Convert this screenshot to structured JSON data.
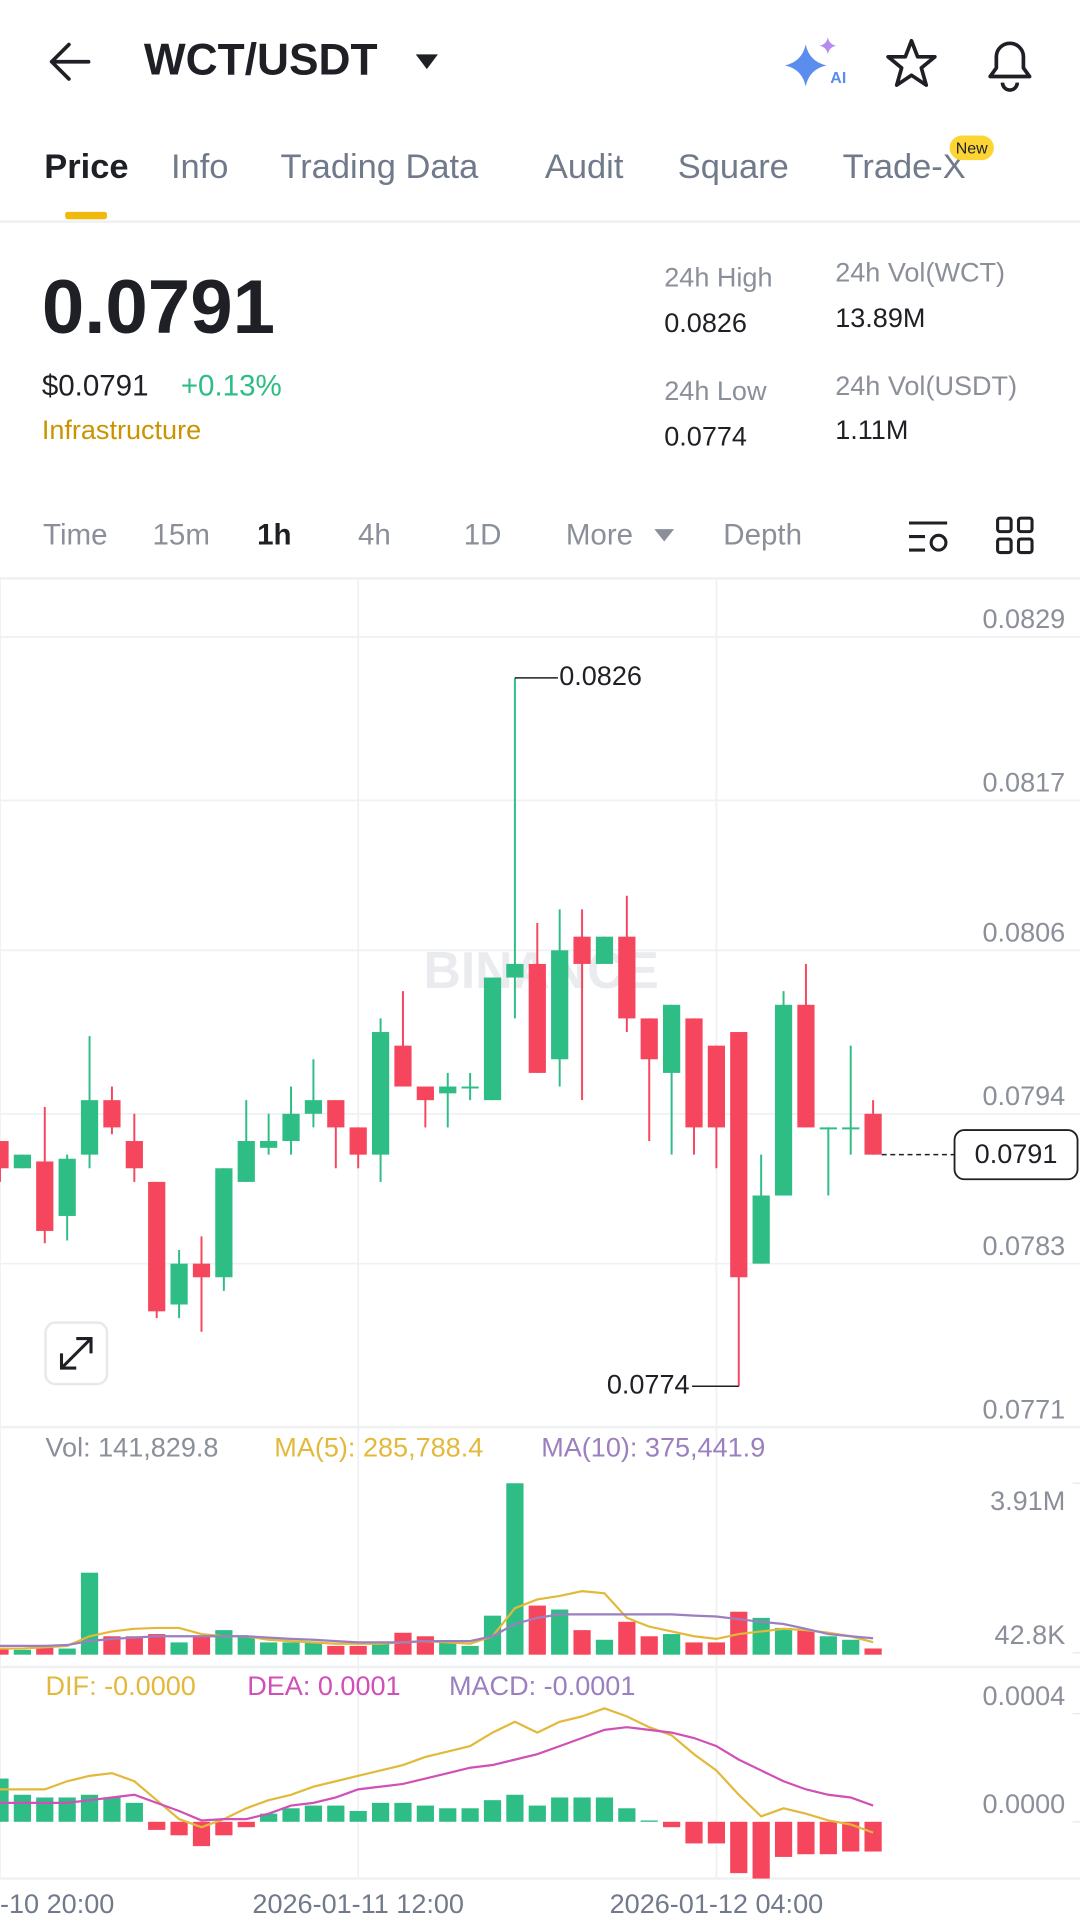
{
  "header": {
    "title": "WCT/USDT",
    "ai_badge": "AI"
  },
  "tabs": {
    "items": [
      "Price",
      "Info",
      "Trading Data",
      "Audit",
      "Square",
      "Trade-X"
    ],
    "badge": "New"
  },
  "quote": {
    "price": "0.0791",
    "usd_price": "$0.0791",
    "change": "+0.13%",
    "sector": "Infrastructure"
  },
  "stats": [
    {
      "label": "24h High",
      "value": "0.0826"
    },
    {
      "label": "24h Low",
      "value": "0.0774"
    },
    {
      "label": "24h Vol(WCT)",
      "value": "13.89M"
    },
    {
      "label": "24h Vol(USDT)",
      "value": "1.11M"
    }
  ],
  "intervals": [
    "Time",
    "15m",
    "1h",
    "4h",
    "1D",
    "More",
    "Depth"
  ],
  "chart_data": [
    {
      "type": "candlestick",
      "watermark": "BINANCE",
      "up_color": "#2ebd85",
      "down_color": "#f6465d",
      "grid": true,
      "categories": [
        "-10 20:00",
        null,
        null,
        null,
        null,
        null,
        null,
        null,
        null,
        null,
        null,
        null,
        null,
        null,
        null,
        null,
        "2026-01-11 12:00",
        null,
        null,
        null,
        null,
        null,
        null,
        null,
        null,
        null,
        null,
        null,
        null,
        null,
        null,
        null,
        "2026-01-12 04:00",
        null,
        null,
        null,
        null,
        null,
        null,
        null
      ],
      "open": [
        0.0792,
        0.079,
        0.07905,
        0.07865,
        0.0791,
        0.0795,
        0.0792,
        0.0789,
        0.078,
        0.0783,
        0.0782,
        0.0789,
        0.07915,
        0.0792,
        0.0794,
        0.0795,
        0.0793,
        0.0791,
        0.0799,
        0.0796,
        0.07955,
        0.0796,
        0.0795,
        0.0804,
        0.0805,
        0.0798,
        0.0807,
        0.0805,
        0.0807,
        0.0801,
        0.0797,
        0.0801,
        0.0799,
        0.08,
        0.0783,
        0.0788,
        0.0802,
        0.0793,
        0.0793,
        0.0794
      ],
      "high": [
        0.0792,
        0.0791,
        0.07945,
        0.0791,
        0.07997,
        0.0796,
        0.0794,
        0.0789,
        0.0784,
        0.0785,
        0.079,
        0.0795,
        0.0794,
        0.0796,
        0.0798,
        0.0795,
        0.0793,
        0.0801,
        0.0803,
        0.0796,
        0.0797,
        0.0797,
        0.0804,
        0.0826,
        0.0808,
        0.0809,
        0.0809,
        0.0807,
        0.081,
        0.0801,
        0.0802,
        0.0801,
        0.0799,
        0.08,
        0.0791,
        0.0803,
        0.0805,
        0.0793,
        0.0799,
        0.0795
      ],
      "low": [
        0.0789,
        0.079,
        0.07845,
        0.07847,
        0.079,
        0.07925,
        0.0789,
        0.0779,
        0.0779,
        0.0778,
        0.0781,
        0.0789,
        0.0791,
        0.0791,
        0.0793,
        0.079,
        0.079,
        0.0789,
        0.0796,
        0.0793,
        0.0793,
        0.0795,
        0.0795,
        0.0801,
        0.0797,
        0.0796,
        0.0795,
        0.0805,
        0.08,
        0.0792,
        0.0791,
        0.0791,
        0.079,
        0.0774,
        0.0783,
        0.0788,
        0.0793,
        0.0788,
        0.0791,
        0.0791
      ],
      "close": [
        0.079,
        0.0791,
        0.07854,
        0.07907,
        0.0795,
        0.0793,
        0.079,
        0.07795,
        0.0783,
        0.0782,
        0.079,
        0.0792,
        0.0792,
        0.0794,
        0.0795,
        0.0793,
        0.0791,
        0.08,
        0.0796,
        0.0795,
        0.0796,
        0.0796,
        0.0804,
        0.0805,
        0.0797,
        0.0806,
        0.0805,
        0.0807,
        0.0801,
        0.0798,
        0.0802,
        0.0793,
        0.0793,
        0.0782,
        0.0788,
        0.0802,
        0.0793,
        0.0793,
        0.0793,
        0.0791
      ],
      "high_label": "0.0826",
      "low_label": "0.0774",
      "last_price_label": "0.0791",
      "ylim": [
        0.0771,
        0.08333
      ],
      "yticks": [
        0.0829,
        0.0817,
        0.0806,
        0.0794,
        0.0783,
        0.0771
      ]
    },
    {
      "type": "bar",
      "legend": [
        "Vol: 141,829.8",
        "MA(5): 285,788.4",
        "MA(10): 375,441.9"
      ],
      "legend_colors": [
        "#8a8f99",
        "#e2b93b",
        "#9b7fc0"
      ],
      "values": [
        140000,
        110000,
        170000,
        140000,
        1870000,
        420000,
        420000,
        470000,
        280000,
        420000,
        560000,
        420000,
        280000,
        280000,
        280000,
        200000,
        200000,
        280000,
        500000,
        420000,
        280000,
        200000,
        890000,
        3910000,
        1120000,
        1030000,
        560000,
        340000,
        750000,
        420000,
        470000,
        280000,
        280000,
        980000,
        840000,
        610000,
        560000,
        420000,
        340000,
        141829.8
      ],
      "lines": [
        {
          "color": "#e2b93b",
          "values": [
            140000,
            140000,
            170000,
            200000,
            420000,
            530000,
            590000,
            610000,
            610000,
            470000,
            420000,
            420000,
            340000,
            310000,
            280000,
            250000,
            250000,
            250000,
            280000,
            310000,
            280000,
            250000,
            420000,
            1060000,
            1260000,
            1340000,
            1450000,
            1400000,
            840000,
            640000,
            530000,
            420000,
            360000,
            470000,
            530000,
            590000,
            560000,
            500000,
            420000,
            285788.4
          ]
        },
        {
          "color": "#9b7fc0",
          "values": [
            200000,
            200000,
            200000,
            220000,
            310000,
            360000,
            390000,
            420000,
            420000,
            420000,
            420000,
            420000,
            390000,
            360000,
            340000,
            310000,
            280000,
            280000,
            280000,
            310000,
            310000,
            310000,
            420000,
            700000,
            840000,
            920000,
            920000,
            920000,
            920000,
            920000,
            920000,
            890000,
            870000,
            810000,
            750000,
            700000,
            590000,
            470000,
            420000,
            375441.9
          ]
        }
      ],
      "ylim": [
        0,
        5050000
      ],
      "yticks": [
        {
          "value": 3910000,
          "label": "3.91M"
        },
        {
          "value": 42800,
          "label": "42.8K"
        }
      ]
    },
    {
      "type": "macd",
      "legend": [
        "DIF: -0.0000",
        "DEA: 0.0001",
        "MACD: -0.0001"
      ],
      "legend_colors": [
        "#e2b93b",
        "#d050b8",
        "#9b7fc0"
      ],
      "values": [
        0.00016,
        0.0001,
        9e-05,
        9e-05,
        0.0001,
        9e-05,
        7e-05,
        -3e-05,
        -5e-05,
        -9e-05,
        -5e-05,
        -2e-05,
        3e-05,
        5e-05,
        6e-05,
        6e-05,
        4e-05,
        7e-05,
        7e-05,
        6e-05,
        5e-05,
        5e-05,
        8e-05,
        0.0001,
        6e-05,
        9e-05,
        9e-05,
        9e-05,
        5e-05,
        5e-06,
        -2e-05,
        -8e-05,
        -8e-05,
        -0.00019,
        -0.00021,
        -0.00013,
        -0.00012,
        -0.00012,
        -0.00011,
        -0.00011
      ],
      "lines": [
        {
          "color": "#e2b93b",
          "values": [
            0.00012,
            0.00012,
            0.00012,
            0.00015,
            0.00017,
            0.00018,
            0.00015,
            8e-05,
            1e-05,
            -2e-05,
            1e-05,
            5e-05,
            8e-05,
            0.0001,
            0.00013,
            0.00015,
            0.00017,
            0.00019,
            0.00021,
            0.00024,
            0.00026,
            0.00028,
            0.00033,
            0.00037,
            0.00033,
            0.00037,
            0.00039,
            0.00042,
            0.00039,
            0.00035,
            0.00032,
            0.00025,
            0.00019,
            0.0001,
            2e-05,
            5e-05,
            3e-05,
            5e-06,
            -1e-05,
            -4e-05
          ]
        },
        {
          "color": "#d050b8",
          "values": [
            7e-05,
            7e-05,
            7e-05,
            7e-05,
            8e-05,
            9e-05,
            0.0001,
            7e-05,
            4e-05,
            5e-06,
            1e-05,
            1e-05,
            3e-05,
            6e-05,
            7e-05,
            9e-05,
            0.00012,
            0.00013,
            0.00014,
            0.00016,
            0.00018,
            0.0002,
            0.00021,
            0.00023,
            0.00025,
            0.00028,
            0.00031,
            0.00034,
            0.00035,
            0.00034,
            0.00033,
            0.00031,
            0.00028,
            0.00023,
            0.00019,
            0.00015,
            0.00012,
            0.0001,
            9e-05,
            6e-05
          ]
        }
      ],
      "ylim": [
        -0.00021,
        0.00055
      ],
      "yticks": [
        0.0004,
        {
          "value": 0,
          "label": "0.0000"
        }
      ]
    }
  ]
}
